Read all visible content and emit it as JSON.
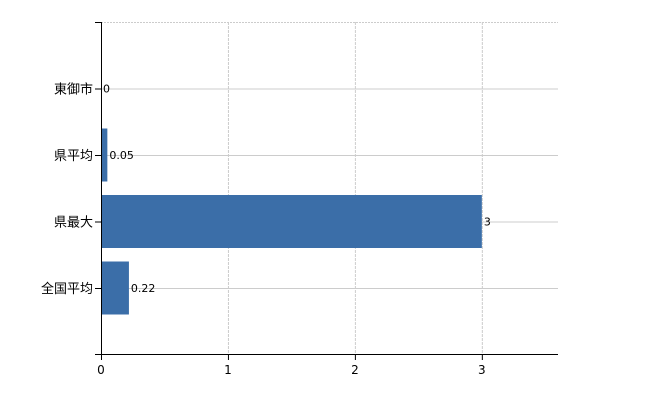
{
  "chart_data": {
    "type": "bar",
    "orientation": "horizontal",
    "title": "",
    "xlabel": "",
    "ylabel": "",
    "categories": [
      "東御市",
      "県平均",
      "県最大",
      "全国平均"
    ],
    "values": [
      0,
      0.05,
      3,
      0.22
    ],
    "data_labels": [
      "0",
      "0.05",
      "3",
      "0.22"
    ],
    "xlim": [
      0,
      3.6
    ],
    "xticks": [
      0,
      1,
      2,
      3
    ],
    "xtick_labels": [
      "0",
      "1",
      "2",
      "3"
    ],
    "grid": true,
    "legend": "none",
    "colors": {
      "bar": "#3b6ea8",
      "grid": "#cccccc",
      "axis": "#000000",
      "label": "#000000"
    }
  }
}
